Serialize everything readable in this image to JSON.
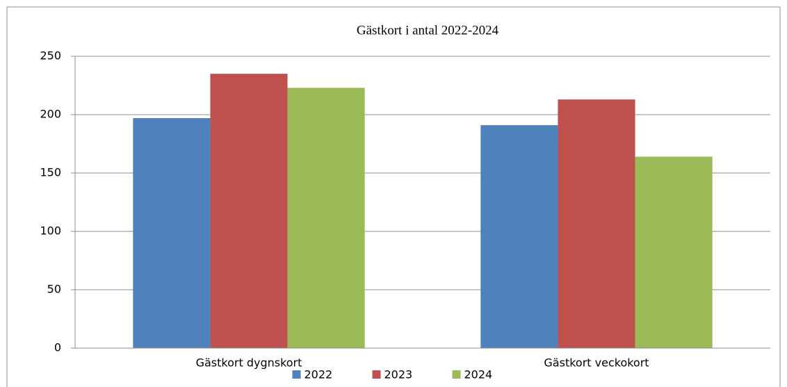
{
  "chart_data": {
    "type": "bar",
    "title": "Gästkort i antal 2022-2024",
    "categories": [
      "Gästkort dygnskort",
      "Gästkort veckokort"
    ],
    "series": [
      {
        "name": "2022",
        "color": "#4f81bd",
        "values": [
          197,
          191
        ]
      },
      {
        "name": "2023",
        "color": "#c0504d",
        "values": [
          235,
          213
        ]
      },
      {
        "name": "2024",
        "color": "#9bbb59",
        "values": [
          223,
          164
        ]
      }
    ],
    "ylim": [
      0,
      250
    ],
    "yticks": [
      0,
      50,
      100,
      150,
      200,
      250
    ],
    "grid": true,
    "legend": "bottom"
  }
}
